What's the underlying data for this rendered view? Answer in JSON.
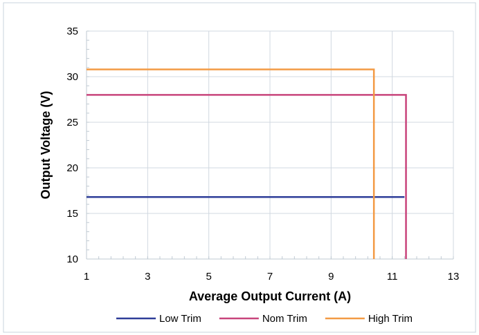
{
  "chart_data": {
    "type": "line",
    "title": "",
    "xlabel": "Average Output Current (A)",
    "ylabel": "Output Voltage (V)",
    "xlim": [
      1,
      13
    ],
    "ylim": [
      10,
      35
    ],
    "x_ticks": [
      1,
      3,
      5,
      7,
      9,
      11,
      13
    ],
    "y_ticks": [
      10,
      15,
      20,
      25,
      30,
      35
    ],
    "x_tick_labels": [
      "1",
      "3",
      "5",
      "7",
      "9",
      "11",
      "13"
    ],
    "y_tick_labels": [
      "10",
      "15",
      "20",
      "25",
      "30",
      "35"
    ],
    "grid": true,
    "legend_position": "bottom",
    "series": [
      {
        "name": "Low Trim",
        "color": "#2E3D98",
        "x": [
          1,
          11.4
        ],
        "y": [
          16.8,
          16.8
        ]
      },
      {
        "name": "Nom Trim",
        "color": "#C8447B",
        "x": [
          1,
          11.45,
          11.45
        ],
        "y": [
          28.0,
          28.0,
          10
        ]
      },
      {
        "name": "High Trim",
        "color": "#F39A44",
        "x": [
          1,
          10.4,
          10.4
        ],
        "y": [
          30.8,
          30.8,
          10
        ]
      }
    ]
  }
}
